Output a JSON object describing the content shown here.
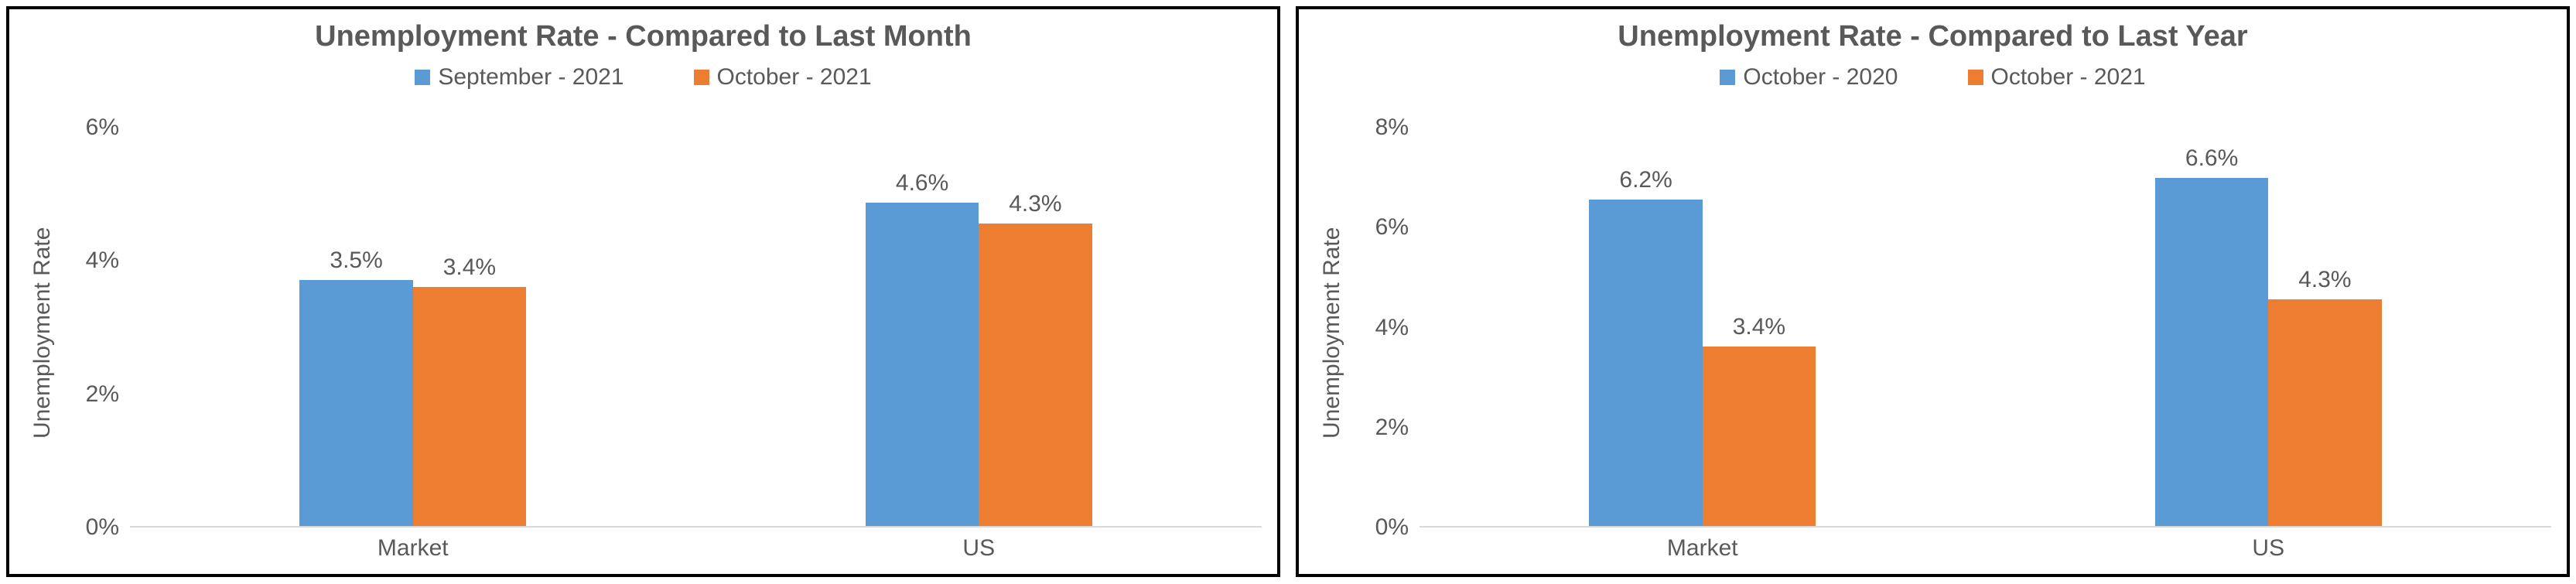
{
  "charts": [
    {
      "type": "bar",
      "title": "Unemployment Rate - Compared to Last Month",
      "title_color": "#595959",
      "title_fontsize": 38,
      "y_axis_title": "Unemployment Rate",
      "label_color": "#595959",
      "tick_fontsize": 30,
      "background_color": "#ffffff",
      "border_color": "#000000",
      "legend": [
        {
          "label": "September - 2021",
          "color": "#5b9bd5"
        },
        {
          "label": "October - 2021",
          "color": "#ed7d31"
        }
      ],
      "categories": [
        "Market",
        "US"
      ],
      "ylim": [
        0,
        6
      ],
      "ytick_step": 2,
      "yticks_fmt": [
        "0%",
        "2%",
        "4%",
        "6%"
      ],
      "bar_width_pct": 20,
      "series": [
        {
          "values": [
            3.5,
            4.6
          ],
          "labels": [
            "3.5%",
            "4.6%"
          ],
          "color": "#5b9bd5"
        },
        {
          "values": [
            3.4,
            4.3
          ],
          "labels": [
            "3.4%",
            "4.3%"
          ],
          "color": "#ed7d31"
        }
      ]
    },
    {
      "type": "bar",
      "title": "Unemployment Rate - Compared to Last Year",
      "title_color": "#595959",
      "title_fontsize": 38,
      "y_axis_title": "Unemployment Rate",
      "label_color": "#595959",
      "tick_fontsize": 30,
      "background_color": "#ffffff",
      "border_color": "#000000",
      "legend": [
        {
          "label": "October - 2020",
          "color": "#5b9bd5"
        },
        {
          "label": "October - 2021",
          "color": "#ed7d31"
        }
      ],
      "categories": [
        "Market",
        "US"
      ],
      "ylim": [
        0,
        8
      ],
      "ytick_step": 2,
      "yticks_fmt": [
        "0%",
        "2%",
        "4%",
        "6%",
        "8%"
      ],
      "bar_width_pct": 20,
      "series": [
        {
          "values": [
            6.2,
            6.6
          ],
          "labels": [
            "6.2%",
            "6.6%"
          ],
          "color": "#5b9bd5"
        },
        {
          "values": [
            3.4,
            4.3
          ],
          "labels": [
            "3.4%",
            "4.3%"
          ],
          "color": "#ed7d31"
        }
      ]
    }
  ]
}
